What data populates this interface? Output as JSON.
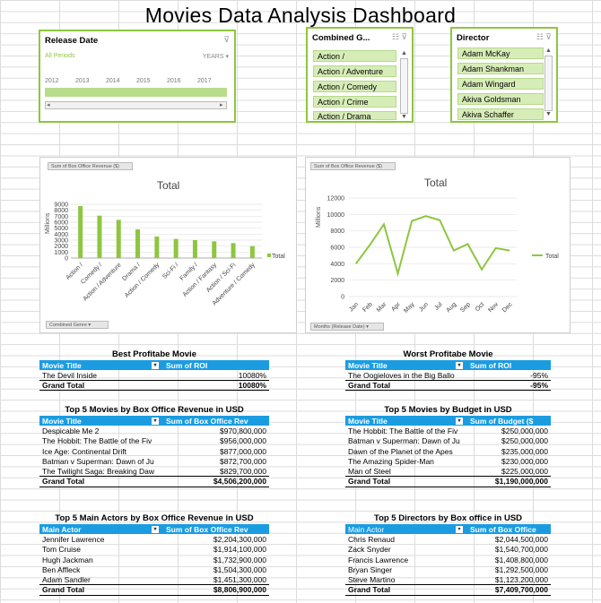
{
  "title": "Movies Data Analysis Dashboard",
  "release_slicer": {
    "header": "Release Date",
    "all_periods": "All Periods",
    "period_type": "YEARS",
    "years": [
      "2012",
      "2013",
      "2014",
      "2015",
      "2016",
      "2017"
    ]
  },
  "genre_slicer": {
    "header": "Combined G...",
    "items": [
      "Action /",
      "Action / Adventure",
      "Action / Comedy",
      "Action / Crime",
      "Action / Drama"
    ]
  },
  "director_slicer": {
    "header": "Director",
    "items": [
      "Adam McKay",
      "Adam Shankman",
      "Adam Wingard",
      "Akiva Goldsman",
      "Akiva Schaffer"
    ]
  },
  "bar_chart": {
    "field_button": "Sum of Box Office Revenue ($)",
    "axis_button": "Combined Genre",
    "ylabel": "Millions",
    "legend": "Total"
  },
  "line_chart": {
    "field_button": "Sum of Box Office Revenue ($)",
    "axis_button": "Months (Release Date)",
    "ylabel": "Millions",
    "legend": "Total"
  },
  "chart_data": [
    {
      "type": "bar",
      "title": "Total",
      "ylabel": "Millions",
      "categories": [
        "Action /",
        "Comedy /",
        "Action / Adventure",
        "Drama /",
        "Action / Comedy",
        "Sci-Fi /",
        "Family /",
        "Action / Fantasy",
        "Action / Sci-Fi",
        "Adventure / Comedy"
      ],
      "series": [
        {
          "name": "Total",
          "values": [
            8700,
            7100,
            6400,
            4800,
            3600,
            3200,
            3000,
            2800,
            2500,
            2000
          ]
        }
      ],
      "ylim": [
        0,
        9000
      ],
      "yticks": [
        0,
        1000,
        2000,
        3000,
        4000,
        5000,
        6000,
        7000,
        8000,
        9000
      ],
      "color": "#8ec63f",
      "legend": "right",
      "grid": true
    },
    {
      "type": "line",
      "title": "Total",
      "ylabel": "Millions",
      "categories": [
        "Jan",
        "Feb",
        "Mar",
        "Apr",
        "May",
        "Jun",
        "Jul",
        "Aug",
        "Sep",
        "Oct",
        "Nov",
        "Dec"
      ],
      "series": [
        {
          "name": "Total",
          "values": [
            4000,
            6300,
            8800,
            2800,
            9200,
            9800,
            9300,
            5600,
            6400,
            3300,
            5900,
            5600
          ]
        }
      ],
      "ylim": [
        0,
        12000
      ],
      "yticks": [
        0,
        2000,
        4000,
        6000,
        8000,
        10000,
        12000
      ],
      "color": "#8ec63f",
      "legend": "right",
      "grid": true
    }
  ],
  "best_profit": {
    "title": "Best Profitabe Movie",
    "col1": "Movie Title",
    "col2": "Sum of ROI",
    "rows": [
      {
        "title": "The Devil Inside",
        "value": "10080%"
      }
    ],
    "total_label": "Grand Total",
    "total": "10080%"
  },
  "worst_profit": {
    "title": "Worst Profitabe Movie",
    "col1": "Movie Title",
    "col2": "Sum of ROI",
    "rows": [
      {
        "title": "The Oogieloves in the Big Ballo",
        "value": "-95%"
      }
    ],
    "total_label": "Grand Total",
    "total": "-95%"
  },
  "top_revenue": {
    "title": "Top 5 Movies by Box Office Revenue in USD",
    "col1": "Movie Title",
    "col2": "Sum of Box Office Rev",
    "rows": [
      {
        "title": "Despicable Me 2",
        "value": "$970,800,000"
      },
      {
        "title": "The Hobbit: The Battle of the Fiv",
        "value": "$956,000,000"
      },
      {
        "title": "Ice Age: Continental Drift",
        "value": "$877,000,000"
      },
      {
        "title": "Batman v Superman: Dawn of Ju",
        "value": "$872,700,000"
      },
      {
        "title": "The Twilight Saga: Breaking Daw",
        "value": "$829,700,000"
      }
    ],
    "total_label": "Grand Total",
    "total": "$4,506,200,000"
  },
  "top_budget": {
    "title": "Top 5 Movies by Budget in USD",
    "col1": "Movie Title",
    "col2": "Sum of Budget ($",
    "rows": [
      {
        "title": "The Hobbit: The Battle of the Fiv",
        "value": "$250,000,000"
      },
      {
        "title": "Batman v Superman: Dawn of Ju",
        "value": "$250,000,000"
      },
      {
        "title": "Dawn of the Planet of the Apes",
        "value": "$235,000,000"
      },
      {
        "title": "The Amazing Spider-Man",
        "value": "$230,000,000"
      },
      {
        "title": "Man of Steel",
        "value": "$225,000,000"
      }
    ],
    "total_label": "Grand Total",
    "total": "$1,190,000,000"
  },
  "top_actors": {
    "title": "Top 5 Main Actors by Box Office Revenue in USD",
    "col1": "Main Actor",
    "col2": "Sum of Box Office Rev",
    "rows": [
      {
        "title": "Jennifer Lawrence",
        "value": "$2,204,300,000"
      },
      {
        "title": "Tom Cruise",
        "value": "$1,914,100,000"
      },
      {
        "title": "Hugh Jackman",
        "value": "$1,732,900,000"
      },
      {
        "title": "Ben Affleck",
        "value": "$1,504,300,000"
      },
      {
        "title": "Adam Sandler",
        "value": "$1,451,300,000"
      }
    ],
    "total_label": "Grand Total",
    "total": "$8,806,900,000"
  },
  "top_directors": {
    "title": "Top 5 Directors by Box office in USD",
    "col1": "Main Actor",
    "col2": "Sum of Box Office",
    "rows": [
      {
        "title": "Chris Renaud",
        "value": "$2,044,500,000"
      },
      {
        "title": "Zack Snyder",
        "value": "$1,540,700,000"
      },
      {
        "title": "Francis Lawrence",
        "value": "$1,408,800,000"
      },
      {
        "title": "Bryan Singer",
        "value": "$1,292,500,000"
      },
      {
        "title": "Steve Martino",
        "value": "$1,123,200,000"
      }
    ],
    "total_label": "Grand Total",
    "total": "$7,409,700,000"
  }
}
